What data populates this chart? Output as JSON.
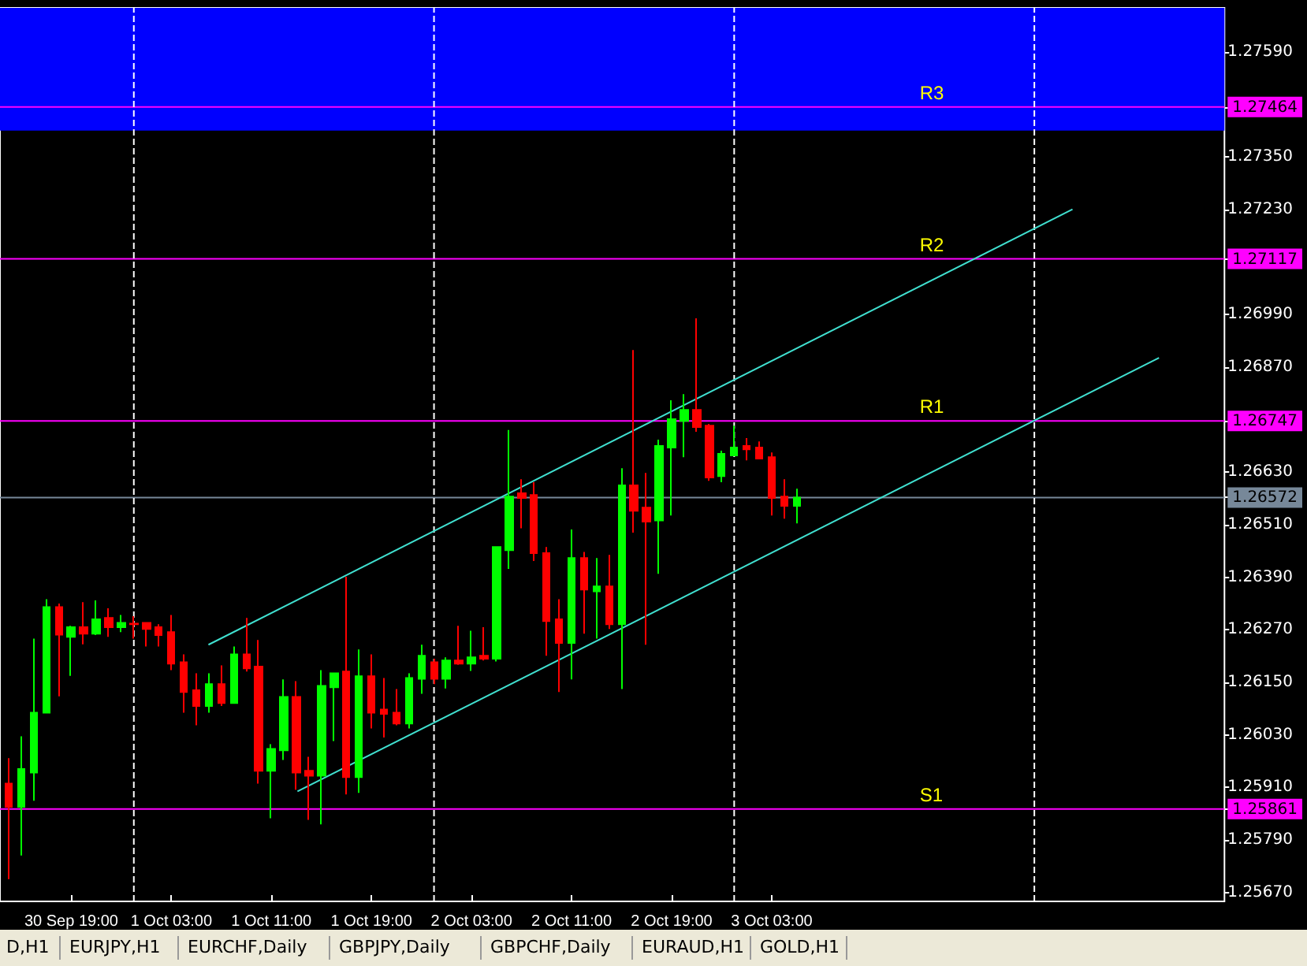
{
  "chart_data": {
    "type": "candlestick",
    "x": [
      "--09-30T14:00",
      "--09-30T15:00",
      "--09-30T16:00",
      "--09-30T17:00",
      "--09-30T18:00",
      "--09-30T19:00",
      "--09-30T20:00",
      "--09-30T21:00",
      "--09-30T22:00",
      "--09-30T23:00",
      "--10-01T00:00",
      "--10-01T01:00",
      "--10-01T02:00",
      "--10-01T03:00",
      "--10-01T04:00",
      "--10-01T05:00",
      "--10-01T06:00",
      "--10-01T07:00",
      "--10-01T08:00",
      "--10-01T09:00",
      "--10-01T10:00",
      "--10-01T11:00",
      "--10-01T12:00",
      "--10-01T13:00",
      "--10-01T14:00",
      "--10-01T15:00",
      "--10-01T16:00",
      "--10-01T17:00",
      "--10-01T18:00",
      "--10-01T19:00",
      "--10-01T20:00",
      "--10-01T21:00",
      "--10-01T22:00",
      "--10-01T23:00",
      "--10-02T00:00",
      "--10-02T01:00",
      "--10-02T02:00",
      "--10-02T03:00",
      "--10-02T04:00",
      "--10-02T05:00",
      "--10-02T06:00",
      "--10-02T07:00",
      "--10-02T08:00",
      "--10-02T09:00",
      "--10-02T10:00",
      "--10-02T11:00",
      "--10-02T12:00",
      "--10-02T13:00",
      "--10-02T14:00",
      "--10-02T15:00",
      "--10-02T16:00",
      "--10-02T17:00",
      "--10-02T18:00",
      "--10-02T19:00",
      "--10-02T20:00",
      "--10-02T21:00",
      "--10-02T22:00",
      "--10-02T23:00",
      "--10-03T00:00",
      "--10-03T01:00",
      "--10-03T02:00",
      "--10-03T03:00",
      "--10-03T04:00",
      "--10-03T05:00"
    ],
    "ohlc": [
      [
        1.25919,
        1.25977,
        1.25701,
        1.25866
      ],
      [
        1.25866,
        1.26027,
        1.25755,
        1.25952
      ],
      [
        1.25944,
        1.2625,
        1.2588,
        1.26081
      ],
      [
        1.26081,
        1.2634,
        1.26081,
        1.26322
      ],
      [
        1.26322,
        1.2633,
        1.26118,
        1.26259
      ],
      [
        1.26254,
        1.26279,
        1.26165,
        1.26276
      ],
      [
        1.26276,
        1.26333,
        1.26237,
        1.26261
      ],
      [
        1.26261,
        1.26337,
        1.26258,
        1.26294
      ],
      [
        1.26297,
        1.26319,
        1.26254,
        1.26276
      ],
      [
        1.26276,
        1.26304,
        1.26265,
        1.26286
      ],
      [
        1.26284,
        1.26301,
        1.2625,
        1.26283
      ],
      [
        1.26286,
        1.26286,
        1.26232,
        1.26272
      ],
      [
        1.26276,
        1.26283,
        1.26232,
        1.26258
      ],
      [
        1.26265,
        1.26304,
        1.26178,
        1.26193
      ],
      [
        1.26196,
        1.26214,
        1.26081,
        1.26128
      ],
      [
        1.26132,
        1.26171,
        1.26052,
        1.26096
      ],
      [
        1.26096,
        1.26171,
        1.26081,
        1.26146
      ],
      [
        1.26146,
        1.26189,
        1.26096,
        1.26103
      ],
      [
        1.26103,
        1.26232,
        1.26103,
        1.26214
      ],
      [
        1.26214,
        1.26297,
        1.26175,
        1.26182
      ],
      [
        1.26186,
        1.26247,
        1.25919,
        1.25948
      ],
      [
        1.25948,
        1.26009,
        1.2584,
        1.25998
      ],
      [
        1.25995,
        1.26157,
        1.25973,
        1.26117
      ],
      [
        1.26117,
        1.26153,
        1.25905,
        1.25944
      ],
      [
        1.25948,
        1.2598,
        1.25836,
        1.25937
      ],
      [
        1.25937,
        1.26178,
        1.25826,
        1.26142
      ],
      [
        1.26139,
        1.26171,
        1.26016,
        1.26171
      ],
      [
        1.26175,
        1.26391,
        1.25894,
        1.25934
      ],
      [
        1.25934,
        1.26225,
        1.25898,
        1.26164
      ],
      [
        1.26164,
        1.26214,
        1.26045,
        1.26081
      ],
      [
        1.26088,
        1.2616,
        1.26024,
        1.26078
      ],
      [
        1.26081,
        1.26135,
        1.26052,
        1.26056
      ],
      [
        1.26056,
        1.26171,
        1.26045,
        1.2616
      ],
      [
        1.26158,
        1.26236,
        1.26124,
        1.26211
      ],
      [
        1.26196,
        1.26204,
        1.26146,
        1.26158
      ],
      [
        1.26158,
        1.26207,
        1.26136,
        1.262
      ],
      [
        1.262,
        1.26279,
        1.2619,
        1.26193
      ],
      [
        1.26193,
        1.26268,
        1.26176,
        1.26207
      ],
      [
        1.26211,
        1.26276,
        1.262,
        1.26204
      ],
      [
        1.26204,
        1.26459,
        1.26198,
        1.26459
      ],
      [
        1.26452,
        1.26726,
        1.26409,
        1.26574
      ],
      [
        1.26582,
        1.26614,
        1.26502,
        1.26571
      ],
      [
        1.26578,
        1.26607,
        1.26427,
        1.26445
      ],
      [
        1.26445,
        1.26459,
        1.26211,
        1.2629
      ],
      [
        1.26294,
        1.2634,
        1.26128,
        1.2624
      ],
      [
        1.2624,
        1.26499,
        1.26157,
        1.26434
      ],
      [
        1.26434,
        1.26448,
        1.26261,
        1.26362
      ],
      [
        1.26358,
        1.26434,
        1.2625,
        1.26369
      ],
      [
        1.26369,
        1.26441,
        1.26272,
        1.26283
      ],
      [
        1.26283,
        1.26639,
        1.26135,
        1.266
      ],
      [
        1.266,
        1.26909,
        1.26492,
        1.26542
      ],
      [
        1.26549,
        1.26628,
        1.26236,
        1.26517
      ],
      [
        1.2652,
        1.26704,
        1.26398,
        1.2669
      ],
      [
        1.26686,
        1.26794,
        1.26531,
        1.26751
      ],
      [
        1.26747,
        1.26808,
        1.26664,
        1.26772
      ],
      [
        1.26772,
        1.26981,
        1.26722,
        1.26733
      ],
      [
        1.26736,
        1.2674,
        1.2661,
        1.26618
      ],
      [
        1.26621,
        1.26679,
        1.26607,
        1.26672
      ],
      [
        1.26668,
        1.26736,
        1.26668,
        1.26686
      ],
      [
        1.2669,
        1.26708,
        1.26657,
        1.26682
      ],
      [
        1.26686,
        1.267,
        1.26661,
        1.26661
      ],
      [
        1.26664,
        1.26675,
        1.26531,
        1.26571
      ],
      [
        1.26574,
        1.26614,
        1.26524,
        1.26553
      ],
      [
        1.26553,
        1.26592,
        1.26513,
        1.26572
      ]
    ],
    "colors": [
      "#ff0000",
      "#00ff00",
      "#00ff00",
      "#00ff00",
      "#ff0000",
      "#00ff00",
      "#ff0000",
      "#00ff00",
      "#ff0000",
      "#00ff00",
      "#ff0000",
      "#ff0000",
      "#ff0000",
      "#ff0000",
      "#ff0000",
      "#ff0000",
      "#00ff00",
      "#ff0000",
      "#00ff00",
      "#ff0000",
      "#ff0000",
      "#00ff00",
      "#00ff00",
      "#ff0000",
      "#ff0000",
      "#00ff00",
      "#00ff00",
      "#ff0000",
      "#00ff00",
      "#ff0000",
      "#ff0000",
      "#ff0000",
      "#00ff00",
      "#00ff00",
      "#ff0000",
      "#00ff00",
      "#ff0000",
      "#00ff00",
      "#ff0000",
      "#00ff00",
      "#00ff00",
      "#ff0000",
      "#ff0000",
      "#ff0000",
      "#ff0000",
      "#00ff00",
      "#ff0000",
      "#00ff00",
      "#ff0000",
      "#00ff00",
      "#ff0000",
      "#ff0000",
      "#00ff00",
      "#00ff00",
      "#00ff00",
      "#ff0000",
      "#ff0000",
      "#00ff00",
      "#00ff00",
      "#ff0000",
      "#ff0000",
      "#ff0000",
      "#ff0000",
      "#00ff00"
    ],
    "series": [
      {
        "type": "line",
        "x": [
          "--10-01T05:58",
          "--10-04T03:03"
        ],
        "values": [
          1.26236,
          1.2723
        ],
        "color": "#40e0d0"
      },
      {
        "type": "line",
        "x": [
          "--10-01T13:05",
          "--10-04T09:58"
        ],
        "values": [
          1.25901,
          1.26891
        ],
        "color": "#40e0d0"
      }
    ],
    "marker": "none",
    "xlim": [
      "--09-30T13:18",
      "--10-04T15:12"
    ],
    "xticks": [
      {
        "value": "--09-30T19:00",
        "label": "30 Sep 19:00"
      },
      {
        "value": "--10-01T03:00",
        "label": "1 Oct 03:00"
      },
      {
        "value": "--10-01T11:00",
        "label": "1 Oct 11:00"
      },
      {
        "value": "--10-01T19:00",
        "label": "1 Oct 19:00"
      },
      {
        "value": "--10-02T03:00",
        "label": "2 Oct 03:00"
      },
      {
        "value": "--10-02T11:00",
        "label": "2 Oct 11:00"
      },
      {
        "value": "--10-02T19:00",
        "label": "2 Oct 19:00"
      },
      {
        "value": "--10-03T03:00",
        "label": "3 Oct 03:00"
      }
    ],
    "ylim": [
      1.2565,
      1.2769
    ],
    "yticks": [
      {
        "value": 1.2567,
        "label": "1.25670"
      },
      {
        "value": 1.2579,
        "label": "1.25790"
      },
      {
        "value": 1.2591,
        "label": "1.25910"
      },
      {
        "value": 1.2603,
        "label": "1.26030"
      },
      {
        "value": 1.2615,
        "label": "1.26150"
      },
      {
        "value": 1.2627,
        "label": "1.26270"
      },
      {
        "value": 1.2639,
        "label": "1.26390"
      },
      {
        "value": 1.2651,
        "label": "1.26510"
      },
      {
        "value": 1.2663,
        "label": "1.26630"
      },
      {
        "value": 1.2687,
        "label": "1.26870"
      },
      {
        "value": 1.2699,
        "label": "1.26990"
      },
      {
        "value": 1.2723,
        "label": "1.27230"
      },
      {
        "value": 1.2735,
        "label": "1.27350"
      },
      {
        "value": 1.2759,
        "label": "1.27590"
      },
      {
        "value": 1.27464,
        "label": "1.27464"
      },
      {
        "value": 1.27117,
        "label": "1.27117"
      },
      {
        "value": 1.26747,
        "label": "1.26747"
      },
      {
        "value": 1.26572,
        "label": "1.26572"
      },
      {
        "value": 1.25861,
        "label": "1.25861"
      }
    ],
    "grid": false,
    "ref_lines": [
      {
        "axis": "y",
        "value": 1.27464,
        "label": "R3",
        "color": "#ff00ff"
      },
      {
        "axis": "y",
        "value": 1.27117,
        "label": "R2",
        "color": "#ff00ff"
      },
      {
        "axis": "y",
        "value": 1.26747,
        "label": "R1",
        "color": "#ff00ff"
      },
      {
        "axis": "y",
        "value": 1.25861,
        "label": "S1",
        "color": "#ff00ff"
      },
      {
        "axis": "y",
        "value": 1.26572,
        "color": "#778899"
      },
      {
        "axis": "x",
        "value": "--10-01T00:00",
        "color": "#ffffff",
        "line_style": "dashed"
      },
      {
        "axis": "x",
        "value": "--10-02T00:00",
        "color": "#ffffff",
        "line_style": "dashed"
      },
      {
        "axis": "x",
        "value": "--10-03T00:00",
        "color": "#ffffff",
        "line_style": "dashed"
      },
      {
        "axis": "x",
        "value": "--10-04T00:00",
        "color": "#ffffff",
        "line_style": "dashed"
      }
    ],
    "bands": [
      {
        "axis": "y",
        "from": 1.2741,
        "to": 1.2769,
        "color": "#0000ff"
      }
    ],
    "annotations": [
      "D,H1",
      "EURJPY,H1",
      "EURCHF,Daily",
      "GBPJPY,Daily",
      "GBPCHF,Daily",
      "EURAUD,H1",
      "GOLD,H1"
    ]
  }
}
